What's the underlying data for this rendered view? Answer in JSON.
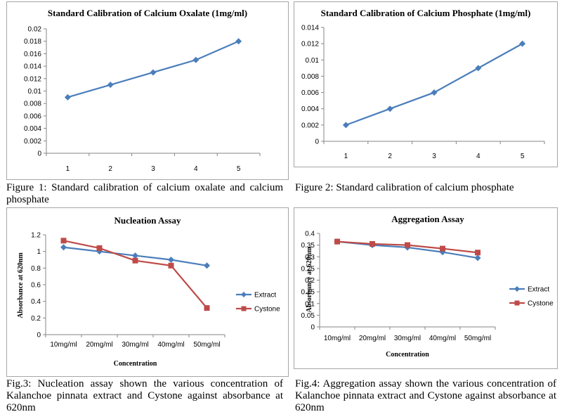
{
  "colors": {
    "blue": "#4a7ebb",
    "red": "#be4b48"
  },
  "captions": {
    "fig1": "Figure 1: Standard calibration of calcium oxalate and calcium phosphate",
    "fig2": "Figure 2: Standard calibration of calcium phosphate",
    "fig3": "Fig.3: Nucleation assay shown the various concentration of Kalanchoe pinnata extract and Cystone against absorbance at 620nm",
    "fig4": "Fig.4: Aggregation assay shown the various concentration of Kalanchoe pinnata extract and Cystone against absorbance at 620nm"
  },
  "chart_data": [
    {
      "type": "line",
      "title": "Standard Calibration of Calcium Oxalate (1mg/ml)",
      "xlabel": "",
      "ylabel": "",
      "categories": [
        "1",
        "2",
        "3",
        "4",
        "5"
      ],
      "yticks": [
        "0",
        "0.002",
        "0.004",
        "0.006",
        "0.008",
        "0.01",
        "0.012",
        "0.014",
        "0.016",
        "0.018",
        "0.02"
      ],
      "ylim": [
        0,
        0.02
      ],
      "grid": false,
      "series": [
        {
          "values": [
            0.009,
            0.011,
            0.013,
            0.015,
            0.018
          ],
          "color": "#4a7ebb",
          "marker": "diamond"
        }
      ]
    },
    {
      "type": "line",
      "title": "Standard Calibration of Calcium  Phosphate (1mg/ml)",
      "xlabel": "",
      "ylabel": "",
      "categories": [
        "1",
        "2",
        "3",
        "4",
        "5"
      ],
      "yticks": [
        "0",
        "0.002",
        "0.004",
        "0.006",
        "0.008",
        "0.01",
        "0.012",
        "0.014"
      ],
      "ylim": [
        0,
        0.014
      ],
      "grid": false,
      "series": [
        {
          "values": [
            0.002,
            0.004,
            0.006,
            0.009,
            0.012
          ],
          "color": "#4a7ebb",
          "marker": "diamond"
        }
      ]
    },
    {
      "type": "line",
      "title": "Nucleation Assay",
      "xlabel": "Concentration",
      "ylabel": "Absorbance at 620nm",
      "categories": [
        "10mg/ml",
        "20mg/ml",
        "30mg/ml",
        "40mg/ml",
        "50mg/ml"
      ],
      "yticks": [
        "0",
        "0.2",
        "0.4",
        "0.6",
        "0.8",
        "1",
        "1.2"
      ],
      "ylim": [
        0,
        1.2
      ],
      "grid": false,
      "legend_position": "right",
      "series": [
        {
          "name": "Extract",
          "values": [
            1.05,
            1.0,
            0.95,
            0.9,
            0.83
          ],
          "color": "#4a7ebb",
          "marker": "diamond"
        },
        {
          "name": "Cystone",
          "values": [
            1.13,
            1.04,
            0.89,
            0.83,
            0.32
          ],
          "color": "#be4b48",
          "marker": "square"
        }
      ]
    },
    {
      "type": "line",
      "title": "Aggregation Assay",
      "xlabel": "Concentration",
      "ylabel": "Absorbance at 620nm",
      "categories": [
        "10mg/ml",
        "20mg/ml",
        "30mg/ml",
        "40mg/ml",
        "50mg/ml"
      ],
      "yticks": [
        "0",
        "0.05",
        "0.1",
        "0.15",
        "0.2",
        "0.25",
        "0.3",
        "0.35",
        "0.4"
      ],
      "ylim": [
        0,
        0.4
      ],
      "grid": false,
      "legend_position": "right",
      "series": [
        {
          "name": "Extract",
          "values": [
            0.365,
            0.35,
            0.34,
            0.32,
            0.295
          ],
          "color": "#4a7ebb",
          "marker": "diamond"
        },
        {
          "name": "Cystone",
          "values": [
            0.365,
            0.355,
            0.35,
            0.335,
            0.318
          ],
          "color": "#be4b48",
          "marker": "square"
        }
      ]
    }
  ]
}
